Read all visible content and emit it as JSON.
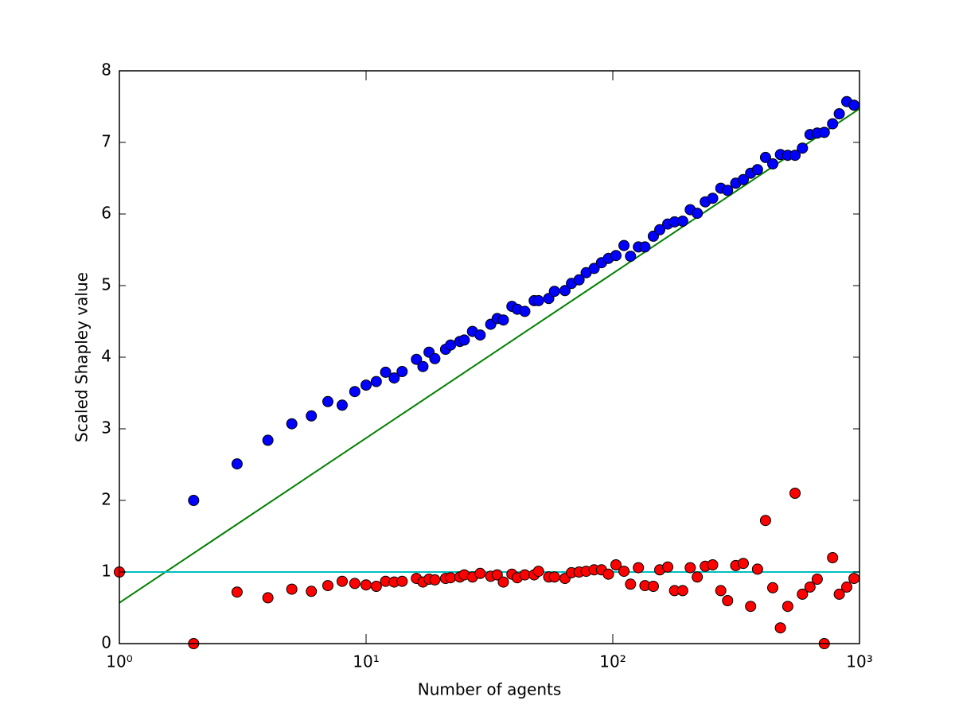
{
  "chart_data": {
    "type": "scatter",
    "x_label": "Number of agents",
    "y_label": "Scaled Shapley value",
    "x_scale": "log",
    "xlim": [
      1,
      1000
    ],
    "ylim": [
      0,
      8
    ],
    "xticks": [
      {
        "value": 1,
        "label": "10⁰"
      },
      {
        "value": 10,
        "label": "10¹"
      },
      {
        "value": 100,
        "label": "10²"
      },
      {
        "value": 1000,
        "label": "10³"
      }
    ],
    "yticks": [
      0,
      1,
      2,
      3,
      4,
      5,
      6,
      7,
      8
    ],
    "series": [
      {
        "name": "Blue",
        "type": "scatter",
        "color": "#0000ff",
        "x": [
          2,
          3,
          4,
          5,
          6,
          7,
          8,
          9,
          10,
          11,
          12,
          13,
          14,
          16,
          17,
          18,
          19,
          21,
          22,
          24,
          25,
          27,
          29,
          32,
          34,
          36,
          39,
          41,
          44,
          48,
          50,
          55,
          58,
          64,
          68,
          73,
          78,
          84,
          90,
          96,
          103,
          111,
          118,
          127,
          135,
          146,
          155,
          167,
          178,
          192,
          206,
          220,
          237,
          254,
          274,
          292,
          315,
          338,
          362,
          386,
          416,
          445,
          478,
          512,
          548,
          587,
          630,
          674,
          720,
          778,
          828,
          888,
          950
        ],
        "values": [
          2.0,
          2.51,
          2.84,
          3.07,
          3.18,
          3.38,
          3.33,
          3.52,
          3.61,
          3.66,
          3.79,
          3.71,
          3.8,
          3.97,
          3.87,
          4.07,
          3.98,
          4.11,
          4.17,
          4.22,
          4.24,
          4.36,
          4.31,
          4.46,
          4.54,
          4.52,
          4.71,
          4.67,
          4.64,
          4.79,
          4.79,
          4.82,
          4.92,
          4.93,
          5.03,
          5.08,
          5.18,
          5.24,
          5.32,
          5.38,
          5.42,
          5.56,
          5.41,
          5.54,
          5.54,
          5.69,
          5.78,
          5.86,
          5.89,
          5.9,
          6.06,
          6.01,
          6.17,
          6.22,
          6.36,
          6.33,
          6.43,
          6.48,
          6.57,
          6.62,
          6.79,
          6.7,
          6.83,
          6.82,
          6.82,
          6.92,
          7.11,
          7.13,
          7.14,
          7.26,
          7.4,
          7.57,
          7.52
        ]
      },
      {
        "name": "Red",
        "type": "scatter",
        "color": "#ff0000",
        "x": [
          1,
          2,
          3,
          4,
          5,
          6,
          7,
          8,
          9,
          10,
          11,
          12,
          13,
          14,
          16,
          17,
          18,
          19,
          21,
          22,
          24,
          25,
          27,
          29,
          32,
          34,
          36,
          39,
          41,
          44,
          48,
          50,
          55,
          58,
          64,
          68,
          73,
          78,
          84,
          90,
          96,
          103,
          111,
          118,
          127,
          135,
          146,
          155,
          167,
          178,
          192,
          206,
          220,
          237,
          254,
          274,
          292,
          315,
          338,
          362,
          386,
          416,
          445,
          478,
          512,
          548,
          587,
          630,
          674,
          720,
          778,
          828,
          888,
          950
        ],
        "values": [
          1.0,
          0,
          0.72,
          0.64,
          0.76,
          0.73,
          0.81,
          0.87,
          0.84,
          0.82,
          0.8,
          0.87,
          0.86,
          0.87,
          0.91,
          0.86,
          0.9,
          0.89,
          0.91,
          0.92,
          0.93,
          0.96,
          0.93,
          0.98,
          0.94,
          0.96,
          0.86,
          0.97,
          0.92,
          0.96,
          0.96,
          1.01,
          0.93,
          0.93,
          0.91,
          0.99,
          1.0,
          1.01,
          1.03,
          1.03,
          0.97,
          1.1,
          1.01,
          0.83,
          1.06,
          0.81,
          0.8,
          1.03,
          1.07,
          0.74,
          0.74,
          1.06,
          0.93,
          1.08,
          1.1,
          0.74,
          0.6,
          1.09,
          1.12,
          0.52,
          1.04,
          1.72,
          0.78,
          0.22,
          0.52,
          2.1,
          0.69,
          0.79,
          0.9,
          0,
          1.2,
          0.69,
          0.79,
          0.91
        ]
      },
      {
        "name": "Green",
        "type": "line",
        "color": "#008000",
        "x": [
          1,
          1000
        ],
        "values": [
          0.57,
          7.47
        ]
      },
      {
        "name": "Cyan",
        "type": "line",
        "color": "#00bfbf",
        "x": [
          1,
          1000
        ],
        "values": [
          1,
          1
        ]
      }
    ]
  }
}
